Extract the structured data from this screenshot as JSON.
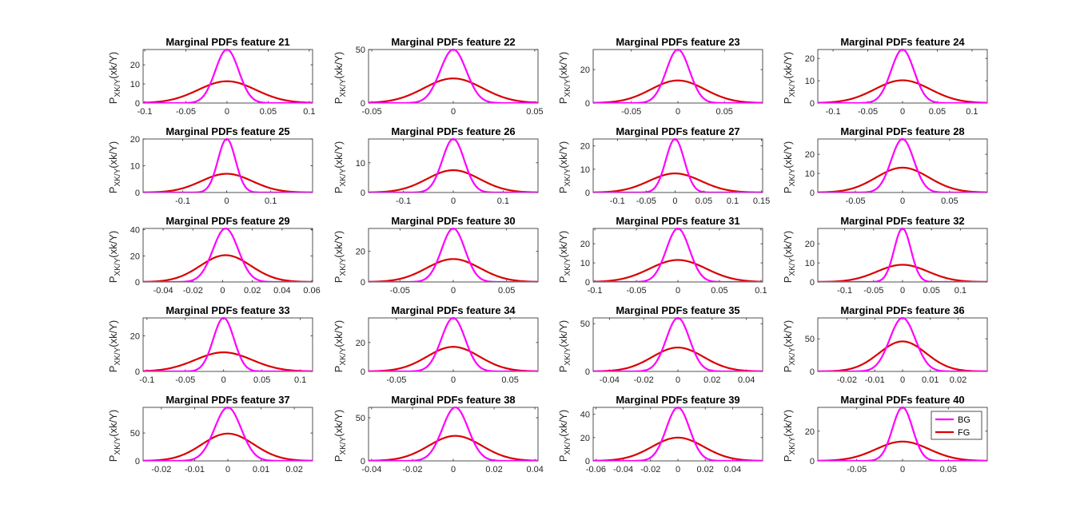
{
  "figure": {
    "ylabel_main": "P",
    "ylabel_sub": "XK/Y",
    "ylabel_arg": "(xk/Y)",
    "legend": {
      "location": "top-right of last panel",
      "entries": [
        {
          "name": "BG",
          "color": "#ff00ff"
        },
        {
          "name": "FG",
          "color": "#d90000"
        }
      ]
    }
  },
  "chart_data": [
    {
      "type": "line",
      "title": "Marginal PDFs  feature 21",
      "xlim": [
        -0.102,
        0.104
      ],
      "ylim": [
        0,
        28
      ],
      "xticks": [
        -0.1,
        -0.05,
        0,
        0.05,
        0.1
      ],
      "xtick_labels": [
        "-0.1",
        "-0.05",
        "0",
        "0.05",
        "0.1"
      ],
      "yticks": [
        0,
        10,
        20
      ],
      "ytick_labels": [
        "0",
        "10",
        "20"
      ],
      "series": [
        {
          "name": "BG",
          "color": "#ff00ff",
          "mu": 0,
          "sigma": 0.0142,
          "peak": 28
        },
        {
          "name": "FG",
          "color": "#d90000",
          "mu": 0,
          "sigma": 0.035,
          "peak": 11.4
        }
      ]
    },
    {
      "type": "line",
      "title": "Marginal PDFs  feature 22",
      "xlim": [
        -0.052,
        0.052
      ],
      "ylim": [
        0,
        50
      ],
      "xticks": [
        -0.05,
        0,
        0.05
      ],
      "xtick_labels": [
        "-0.05",
        "0",
        "0.05"
      ],
      "yticks": [
        0,
        50
      ],
      "ytick_labels": [
        "0",
        "50"
      ],
      "series": [
        {
          "name": "BG",
          "color": "#ff00ff",
          "mu": 0,
          "sigma": 0.008,
          "peak": 50
        },
        {
          "name": "FG",
          "color": "#d90000",
          "mu": 0,
          "sigma": 0.018,
          "peak": 23
        }
      ]
    },
    {
      "type": "line",
      "title": "Marginal PDFs  feature 23",
      "xlim": [
        -0.091,
        0.091
      ],
      "ylim": [
        0,
        32
      ],
      "xticks": [
        -0.05,
        0,
        0.05
      ],
      "xtick_labels": [
        "-0.05",
        "0",
        "0.05"
      ],
      "yticks": [
        0,
        20
      ],
      "ytick_labels": [
        "0",
        "20"
      ],
      "series": [
        {
          "name": "BG",
          "color": "#ff00ff",
          "mu": 0,
          "sigma": 0.0125,
          "peak": 32
        },
        {
          "name": "FG",
          "color": "#d90000",
          "mu": 0,
          "sigma": 0.029,
          "peak": 13.5
        }
      ]
    },
    {
      "type": "line",
      "title": "Marginal PDFs  feature 24",
      "xlim": [
        -0.122,
        0.122
      ],
      "ylim": [
        0,
        24
      ],
      "xticks": [
        -0.1,
        -0.05,
        0,
        0.05,
        0.1
      ],
      "xtick_labels": [
        "-0.1",
        "-0.05",
        "0",
        "0.05",
        "0.1"
      ],
      "yticks": [
        0,
        10,
        20
      ],
      "ytick_labels": [
        "0",
        "10",
        "20"
      ],
      "series": [
        {
          "name": "BG",
          "color": "#ff00ff",
          "mu": 0,
          "sigma": 0.0165,
          "peak": 24
        },
        {
          "name": "FG",
          "color": "#d90000",
          "mu": 0,
          "sigma": 0.04,
          "peak": 10.2
        }
      ]
    },
    {
      "type": "line",
      "title": "Marginal PDFs  feature 25",
      "xlim": [
        -0.19,
        0.195
      ],
      "ylim": [
        0,
        20
      ],
      "xticks": [
        -0.1,
        0,
        0.1
      ],
      "xtick_labels": [
        "-0.1",
        "0",
        "0.1"
      ],
      "yticks": [
        0,
        10,
        20
      ],
      "ytick_labels": [
        "0",
        "10",
        "20"
      ],
      "series": [
        {
          "name": "BG",
          "color": "#ff00ff",
          "mu": 0,
          "sigma": 0.02,
          "peak": 20
        },
        {
          "name": "FG",
          "color": "#d90000",
          "mu": 0,
          "sigma": 0.058,
          "peak": 7
        }
      ]
    },
    {
      "type": "line",
      "title": "Marginal PDFs  feature 26",
      "xlim": [
        -0.17,
        0.17
      ],
      "ylim": [
        0,
        18
      ],
      "xticks": [
        -0.1,
        0,
        0.1
      ],
      "xtick_labels": [
        "-0.1",
        "0",
        "0.1"
      ],
      "yticks": [
        0,
        10
      ],
      "ytick_labels": [
        "0",
        "10"
      ],
      "series": [
        {
          "name": "BG",
          "color": "#ff00ff",
          "mu": 0,
          "sigma": 0.022,
          "peak": 18
        },
        {
          "name": "FG",
          "color": "#d90000",
          "mu": 0,
          "sigma": 0.053,
          "peak": 7.5
        }
      ]
    },
    {
      "type": "line",
      "title": "Marginal PDFs  feature 27",
      "xlim": [
        -0.142,
        0.152
      ],
      "ylim": [
        0,
        23
      ],
      "xticks": [
        -0.1,
        -0.05,
        0,
        0.05,
        0.1,
        0.15
      ],
      "xtick_labels": [
        "-0.1",
        "-0.05",
        "0",
        "0.05",
        "0.1",
        "0.15"
      ],
      "yticks": [
        0,
        10,
        20
      ],
      "ytick_labels": [
        "0",
        "10",
        "20"
      ],
      "series": [
        {
          "name": "BG",
          "color": "#ff00ff",
          "mu": 0,
          "sigma": 0.016,
          "peak": 23
        },
        {
          "name": "FG",
          "color": "#d90000",
          "mu": 0,
          "sigma": 0.045,
          "peak": 8.2
        }
      ]
    },
    {
      "type": "line",
      "title": "Marginal PDFs  feature 28",
      "xlim": [
        -0.09,
        0.09
      ],
      "ylim": [
        0,
        28
      ],
      "xticks": [
        -0.05,
        0,
        0.05
      ],
      "xtick_labels": [
        "-0.05",
        "0",
        "0.05"
      ],
      "yticks": [
        0,
        10,
        20
      ],
      "ytick_labels": [
        "0",
        "10",
        "20"
      ],
      "series": [
        {
          "name": "BG",
          "color": "#ff00ff",
          "mu": 0,
          "sigma": 0.012,
          "peak": 28
        },
        {
          "name": "FG",
          "color": "#d90000",
          "mu": 0,
          "sigma": 0.028,
          "peak": 13
        }
      ]
    },
    {
      "type": "line",
      "title": "Marginal PDFs  feature 29",
      "xlim": [
        -0.0535,
        0.0605
      ],
      "ylim": [
        0,
        41
      ],
      "xticks": [
        -0.04,
        -0.02,
        0,
        0.02,
        0.04,
        0.06
      ],
      "xtick_labels": [
        "-0.04",
        "-0.02",
        "0",
        "0.02",
        "0.04",
        "0.06"
      ],
      "yticks": [
        0,
        20,
        40
      ],
      "ytick_labels": [
        "0",
        "20",
        "40"
      ],
      "series": [
        {
          "name": "BG",
          "color": "#ff00ff",
          "mu": 0.002,
          "sigma": 0.0085,
          "peak": 41
        },
        {
          "name": "FG",
          "color": "#d90000",
          "mu": 0.002,
          "sigma": 0.017,
          "peak": 20.5
        }
      ]
    },
    {
      "type": "line",
      "title": "Marginal PDFs  feature 30",
      "xlim": [
        -0.0795,
        0.0795
      ],
      "ylim": [
        0,
        35
      ],
      "xticks": [
        -0.05,
        0,
        0.05
      ],
      "xtick_labels": [
        "-0.05",
        "0",
        "0.05"
      ],
      "yticks": [
        0,
        20
      ],
      "ytick_labels": [
        "0",
        "20"
      ],
      "series": [
        {
          "name": "BG",
          "color": "#ff00ff",
          "mu": 0,
          "sigma": 0.011,
          "peak": 35
        },
        {
          "name": "FG",
          "color": "#d90000",
          "mu": 0,
          "sigma": 0.025,
          "peak": 15
        }
      ]
    },
    {
      "type": "line",
      "title": "Marginal PDFs  feature 31",
      "xlim": [
        -0.102,
        0.102
      ],
      "ylim": [
        0,
        28
      ],
      "xticks": [
        -0.1,
        -0.05,
        0,
        0.05,
        0.1
      ],
      "xtick_labels": [
        "-0.1",
        "-0.05",
        "0",
        "0.05",
        "0.1"
      ],
      "yticks": [
        0,
        10,
        20
      ],
      "ytick_labels": [
        "0",
        "10",
        "20"
      ],
      "series": [
        {
          "name": "BG",
          "color": "#ff00ff",
          "mu": 0,
          "sigma": 0.014,
          "peak": 28
        },
        {
          "name": "FG",
          "color": "#d90000",
          "mu": 0,
          "sigma": 0.034,
          "peak": 11.5
        }
      ]
    },
    {
      "type": "line",
      "title": "Marginal PDFs  feature 32",
      "xlim": [
        -0.1465,
        0.1465
      ],
      "ylim": [
        0,
        28
      ],
      "xticks": [
        -0.1,
        -0.05,
        0,
        0.05,
        0.1
      ],
      "xtick_labels": [
        "-0.1",
        "-0.05",
        "0",
        "0.05",
        "0.1"
      ],
      "yticks": [
        0,
        10,
        20
      ],
      "ytick_labels": [
        "0",
        "10",
        "20"
      ],
      "series": [
        {
          "name": "BG",
          "color": "#ff00ff",
          "mu": 0,
          "sigma": 0.0145,
          "peak": 28
        },
        {
          "name": "FG",
          "color": "#d90000",
          "mu": 0,
          "sigma": 0.044,
          "peak": 9
        }
      ]
    },
    {
      "type": "line",
      "title": "Marginal PDFs  feature 33",
      "xlim": [
        -0.105,
        0.116
      ],
      "ylim": [
        0,
        30
      ],
      "xticks": [
        -0.1,
        -0.05,
        0,
        0.05,
        0.1
      ],
      "xtick_labels": [
        "-0.1",
        "-0.05",
        "0",
        "0.05",
        "0.1"
      ],
      "yticks": [
        0,
        20
      ],
      "ytick_labels": [
        "0",
        "20"
      ],
      "series": [
        {
          "name": "BG",
          "color": "#ff00ff",
          "mu": 0,
          "sigma": 0.0135,
          "peak": 30
        },
        {
          "name": "FG",
          "color": "#d90000",
          "mu": 0,
          "sigma": 0.037,
          "peak": 10.7
        }
      ]
    },
    {
      "type": "line",
      "title": "Marginal PDFs  feature 34",
      "xlim": [
        -0.0745,
        0.0745
      ],
      "ylim": [
        0,
        37
      ],
      "xticks": [
        -0.05,
        0,
        0.05
      ],
      "xtick_labels": [
        "-0.05",
        "0",
        "0.05"
      ],
      "yticks": [
        0,
        20
      ],
      "ytick_labels": [
        "0",
        "20"
      ],
      "series": [
        {
          "name": "BG",
          "color": "#ff00ff",
          "mu": 0,
          "sigma": 0.0105,
          "peak": 37
        },
        {
          "name": "FG",
          "color": "#d90000",
          "mu": 0,
          "sigma": 0.023,
          "peak": 17
        }
      ]
    },
    {
      "type": "line",
      "title": "Marginal PDFs  feature 35",
      "xlim": [
        -0.0495,
        0.0495
      ],
      "ylim": [
        0,
        56
      ],
      "xticks": [
        -0.04,
        -0.02,
        0,
        0.02,
        0.04
      ],
      "xtick_labels": [
        "-0.04",
        "-0.02",
        "0",
        "0.02",
        "0.04"
      ],
      "yticks": [
        0,
        50
      ],
      "ytick_labels": [
        "0",
        "50"
      ],
      "series": [
        {
          "name": "BG",
          "color": "#ff00ff",
          "mu": 0,
          "sigma": 0.0068,
          "peak": 56
        },
        {
          "name": "FG",
          "color": "#d90000",
          "mu": 0,
          "sigma": 0.015,
          "peak": 25
        }
      ]
    },
    {
      "type": "line",
      "title": "Marginal PDFs  feature 36",
      "xlim": [
        -0.0305,
        0.0305
      ],
      "ylim": [
        0,
        82
      ],
      "xticks": [
        -0.02,
        -0.01,
        0,
        0.01,
        0.02
      ],
      "xtick_labels": [
        "-0.02",
        "-0.01",
        "0",
        "0.01",
        "0.02"
      ],
      "yticks": [
        0,
        50
      ],
      "ytick_labels": [
        "0",
        "50"
      ],
      "series": [
        {
          "name": "BG",
          "color": "#ff00ff",
          "mu": 0,
          "sigma": 0.0046,
          "peak": 82
        },
        {
          "name": "FG",
          "color": "#d90000",
          "mu": 0,
          "sigma": 0.0085,
          "peak": 46
        }
      ]
    },
    {
      "type": "line",
      "title": "Marginal PDFs  feature 37",
      "xlim": [
        -0.0255,
        0.0255
      ],
      "ylim": [
        0,
        96
      ],
      "xticks": [
        -0.02,
        -0.01,
        0,
        0.01,
        0.02
      ],
      "xtick_labels": [
        "-0.02",
        "-0.01",
        "0",
        "0.01",
        "0.02"
      ],
      "yticks": [
        0,
        50
      ],
      "ytick_labels": [
        "0",
        "50"
      ],
      "series": [
        {
          "name": "BG",
          "color": "#ff00ff",
          "mu": 0,
          "sigma": 0.004,
          "peak": 96
        },
        {
          "name": "FG",
          "color": "#d90000",
          "mu": 0,
          "sigma": 0.0078,
          "peak": 49
        }
      ]
    },
    {
      "type": "line",
      "title": "Marginal PDFs  feature 38",
      "xlim": [
        -0.0415,
        0.0415
      ],
      "ylim": [
        0,
        62
      ],
      "xticks": [
        -0.04,
        -0.02,
        0,
        0.02,
        0.04
      ],
      "xtick_labels": [
        "-0.04",
        "-0.02",
        "0",
        "0.02",
        "0.04"
      ],
      "yticks": [
        0,
        50
      ],
      "ytick_labels": [
        "0",
        "50"
      ],
      "series": [
        {
          "name": "BG",
          "color": "#ff00ff",
          "mu": 0.001,
          "sigma": 0.0063,
          "peak": 62
        },
        {
          "name": "FG",
          "color": "#d90000",
          "mu": 0.001,
          "sigma": 0.013,
          "peak": 29
        }
      ]
    },
    {
      "type": "line",
      "title": "Marginal PDFs  feature 39",
      "xlim": [
        -0.062,
        0.062
      ],
      "ylim": [
        0,
        46
      ],
      "xticks": [
        -0.06,
        -0.04,
        -0.02,
        0,
        0.02,
        0.04
      ],
      "xtick_labels": [
        "-0.06",
        "-0.04",
        "-0.02",
        "0",
        "0.02",
        "0.04"
      ],
      "yticks": [
        0,
        20,
        40
      ],
      "ytick_labels": [
        "0",
        "20",
        "40"
      ],
      "series": [
        {
          "name": "BG",
          "color": "#ff00ff",
          "mu": 0,
          "sigma": 0.0085,
          "peak": 46
        },
        {
          "name": "FG",
          "color": "#d90000",
          "mu": 0,
          "sigma": 0.019,
          "peak": 20
        }
      ]
    },
    {
      "type": "line",
      "title": "Marginal PDFs  feature 40",
      "xlim": [
        -0.0925,
        0.0925
      ],
      "ylim": [
        0,
        36
      ],
      "xticks": [
        -0.05,
        0,
        0.05
      ],
      "xtick_labels": [
        "-0.05",
        "0",
        "0.05"
      ],
      "yticks": [
        0,
        20
      ],
      "ytick_labels": [
        "0",
        "20"
      ],
      "series": [
        {
          "name": "BG",
          "color": "#ff00ff",
          "mu": 0,
          "sigma": 0.011,
          "peak": 36
        },
        {
          "name": "FG",
          "color": "#d90000",
          "mu": 0,
          "sigma": 0.029,
          "peak": 13
        }
      ]
    }
  ]
}
